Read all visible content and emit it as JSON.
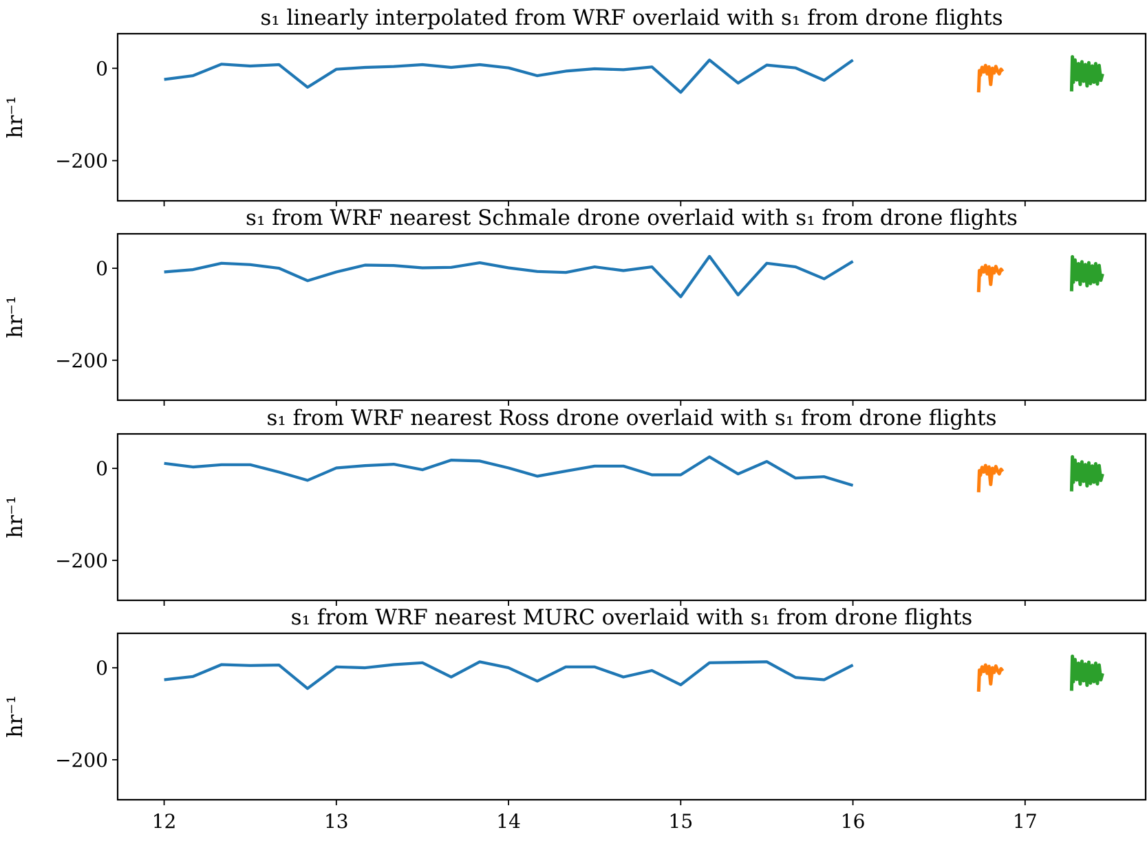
{
  "chart_data": [
    {
      "type": "line",
      "title": "s₁ linearly interpolated from WRF overlaid with s₁ from drone flights",
      "ylabel": "hr⁻¹",
      "xlim": [
        11.73,
        17.7
      ],
      "ylim": [
        -287,
        75
      ],
      "xticks": [
        12,
        13,
        14,
        15,
        16,
        17
      ],
      "yticks": [
        0,
        -200
      ],
      "ytick_labels": [
        "0",
        "−200"
      ],
      "x_tick_labels_visible": false,
      "series": [
        {
          "color": "#1f77b4",
          "x": [
            12.0,
            12.167,
            12.333,
            12.5,
            12.667,
            12.833,
            13.0,
            13.167,
            13.333,
            13.5,
            13.667,
            13.833,
            14.0,
            14.167,
            14.333,
            14.5,
            14.667,
            14.833,
            15.0,
            15.167,
            15.333,
            15.5,
            15.667,
            15.833,
            16.0
          ],
          "y": [
            -24,
            -16,
            9,
            5,
            8,
            -41,
            -2,
            2,
            4,
            8,
            2,
            8,
            1,
            -16,
            -6,
            -1,
            -3,
            3,
            -52,
            18,
            -32,
            7,
            1,
            -26,
            18
          ]
        },
        {
          "color": "#ff7f0e",
          "x": [
            16.73,
            16.735,
            16.74,
            16.75,
            16.76,
            16.77,
            16.78,
            16.79,
            16.8,
            16.81,
            16.82,
            16.83,
            16.84,
            16.85,
            16.86,
            16.87
          ],
          "y": [
            -52,
            -5,
            -15,
            2,
            -8,
            6,
            -12,
            3,
            -35,
            0,
            -10,
            4,
            -6,
            -12,
            -2,
            -7
          ]
        },
        {
          "color": "#2ca02c",
          "x": [
            17.27,
            17.275,
            17.28,
            17.29,
            17.3,
            17.31,
            17.32,
            17.33,
            17.34,
            17.35,
            17.36,
            17.37,
            17.38,
            17.39,
            17.4,
            17.41,
            17.42,
            17.43,
            17.44,
            17.45
          ],
          "y": [
            -50,
            25,
            -30,
            18,
            -25,
            10,
            -35,
            14,
            -28,
            8,
            -38,
            12,
            -33,
            5,
            -30,
            10,
            -34,
            6,
            -26,
            -12
          ]
        }
      ]
    },
    {
      "type": "line",
      "title": "s₁ from WRF nearest Schmale drone overlaid with s₁ from drone flights",
      "ylabel": "hr⁻¹",
      "xlim": [
        11.73,
        17.7
      ],
      "ylim": [
        -287,
        75
      ],
      "xticks": [
        12,
        13,
        14,
        15,
        16,
        17
      ],
      "yticks": [
        0,
        -200
      ],
      "ytick_labels": [
        "0",
        "−200"
      ],
      "x_tick_labels_visible": false,
      "series": [
        {
          "color": "#1f77b4",
          "x": [
            12.0,
            12.167,
            12.333,
            12.5,
            12.667,
            12.833,
            13.0,
            13.167,
            13.333,
            13.5,
            13.667,
            13.833,
            14.0,
            14.167,
            14.333,
            14.5,
            14.667,
            14.833,
            15.0,
            15.167,
            15.333,
            15.5,
            15.667,
            15.833,
            16.0
          ],
          "y": [
            -8,
            -3,
            11,
            8,
            0,
            -27,
            -8,
            7,
            6,
            1,
            2,
            12,
            1,
            -7,
            -9,
            3,
            -5,
            3,
            -62,
            26,
            -58,
            11,
            3,
            -23,
            15
          ]
        },
        {
          "color": "#ff7f0e",
          "x": [
            16.73,
            16.735,
            16.74,
            16.75,
            16.76,
            16.77,
            16.78,
            16.79,
            16.8,
            16.81,
            16.82,
            16.83,
            16.84,
            16.85,
            16.86,
            16.87
          ],
          "y": [
            -52,
            -5,
            -15,
            2,
            -8,
            6,
            -12,
            3,
            -35,
            0,
            -10,
            4,
            -6,
            -12,
            -2,
            -7
          ]
        },
        {
          "color": "#2ca02c",
          "x": [
            17.27,
            17.275,
            17.28,
            17.29,
            17.3,
            17.31,
            17.32,
            17.33,
            17.34,
            17.35,
            17.36,
            17.37,
            17.38,
            17.39,
            17.4,
            17.41,
            17.42,
            17.43,
            17.44,
            17.45
          ],
          "y": [
            -50,
            25,
            -30,
            18,
            -25,
            10,
            -35,
            14,
            -28,
            8,
            -38,
            12,
            -33,
            5,
            -30,
            10,
            -34,
            6,
            -26,
            -12
          ]
        }
      ]
    },
    {
      "type": "line",
      "title": "s₁ from WRF nearest Ross drone overlaid with s₁ from drone flights",
      "ylabel": "hr⁻¹",
      "xlim": [
        11.73,
        17.7
      ],
      "ylim": [
        -287,
        75
      ],
      "xticks": [
        12,
        13,
        14,
        15,
        16,
        17
      ],
      "yticks": [
        0,
        -200
      ],
      "ytick_labels": [
        "0",
        "−200"
      ],
      "x_tick_labels_visible": false,
      "series": [
        {
          "color": "#1f77b4",
          "x": [
            12.0,
            12.167,
            12.333,
            12.5,
            12.667,
            12.833,
            13.0,
            13.167,
            13.333,
            13.5,
            13.667,
            13.833,
            14.0,
            14.167,
            14.333,
            14.5,
            14.667,
            14.833,
            15.0,
            15.167,
            15.333,
            15.5,
            15.667,
            15.833,
            16.0
          ],
          "y": [
            11,
            3,
            8,
            8,
            -8,
            -26,
            1,
            6,
            9,
            -3,
            18,
            16,
            1,
            -17,
            -6,
            5,
            5,
            -14,
            -14,
            25,
            -12,
            15,
            -21,
            -18,
            -37
          ]
        },
        {
          "color": "#ff7f0e",
          "x": [
            16.73,
            16.735,
            16.74,
            16.75,
            16.76,
            16.77,
            16.78,
            16.79,
            16.8,
            16.81,
            16.82,
            16.83,
            16.84,
            16.85,
            16.86,
            16.87
          ],
          "y": [
            -52,
            -5,
            -15,
            2,
            -8,
            6,
            -12,
            3,
            -35,
            0,
            -10,
            4,
            -6,
            -12,
            -2,
            -7
          ]
        },
        {
          "color": "#2ca02c",
          "x": [
            17.27,
            17.275,
            17.28,
            17.29,
            17.3,
            17.31,
            17.32,
            17.33,
            17.34,
            17.35,
            17.36,
            17.37,
            17.38,
            17.39,
            17.4,
            17.41,
            17.42,
            17.43,
            17.44,
            17.45
          ],
          "y": [
            -50,
            25,
            -30,
            18,
            -25,
            10,
            -35,
            14,
            -28,
            8,
            -38,
            12,
            -33,
            5,
            -30,
            10,
            -34,
            6,
            -26,
            -12
          ]
        }
      ]
    },
    {
      "type": "line",
      "title": "s₁ from WRF nearest MURC overlaid with s₁ from drone flights",
      "ylabel": "hr⁻¹",
      "xlim": [
        11.73,
        17.7
      ],
      "ylim": [
        -287,
        75
      ],
      "xticks": [
        12,
        13,
        14,
        15,
        16,
        17
      ],
      "xtick_labels": [
        "12",
        "13",
        "14",
        "15",
        "16",
        "17"
      ],
      "yticks": [
        0,
        -200
      ],
      "ytick_labels": [
        "0",
        "−200"
      ],
      "x_tick_labels_visible": true,
      "series": [
        {
          "color": "#1f77b4",
          "x": [
            12.0,
            12.167,
            12.333,
            12.5,
            12.667,
            12.833,
            13.0,
            13.167,
            13.333,
            13.5,
            13.667,
            13.833,
            14.0,
            14.167,
            14.333,
            14.5,
            14.667,
            14.833,
            15.0,
            15.167,
            15.333,
            15.5,
            15.667,
            15.833,
            16.0
          ],
          "y": [
            -26,
            -19,
            7,
            5,
            6,
            -45,
            2,
            0,
            7,
            11,
            -20,
            13,
            0,
            -29,
            2,
            2,
            -20,
            -6,
            -37,
            11,
            12,
            13,
            -21,
            -26,
            6
          ]
        },
        {
          "color": "#ff7f0e",
          "x": [
            16.73,
            16.735,
            16.74,
            16.75,
            16.76,
            16.77,
            16.78,
            16.79,
            16.8,
            16.81,
            16.82,
            16.83,
            16.84,
            16.85,
            16.86,
            16.87
          ],
          "y": [
            -52,
            -5,
            -15,
            2,
            -8,
            6,
            -12,
            3,
            -35,
            0,
            -10,
            4,
            -6,
            -12,
            -2,
            -7
          ]
        },
        {
          "color": "#2ca02c",
          "x": [
            17.27,
            17.275,
            17.28,
            17.29,
            17.3,
            17.31,
            17.32,
            17.33,
            17.34,
            17.35,
            17.36,
            17.37,
            17.38,
            17.39,
            17.4,
            17.41,
            17.42,
            17.43,
            17.44,
            17.45
          ],
          "y": [
            -50,
            25,
            -30,
            18,
            -25,
            10,
            -35,
            14,
            -28,
            8,
            -38,
            12,
            -33,
            5,
            -30,
            10,
            -34,
            6,
            -26,
            -12
          ]
        }
      ]
    }
  ]
}
